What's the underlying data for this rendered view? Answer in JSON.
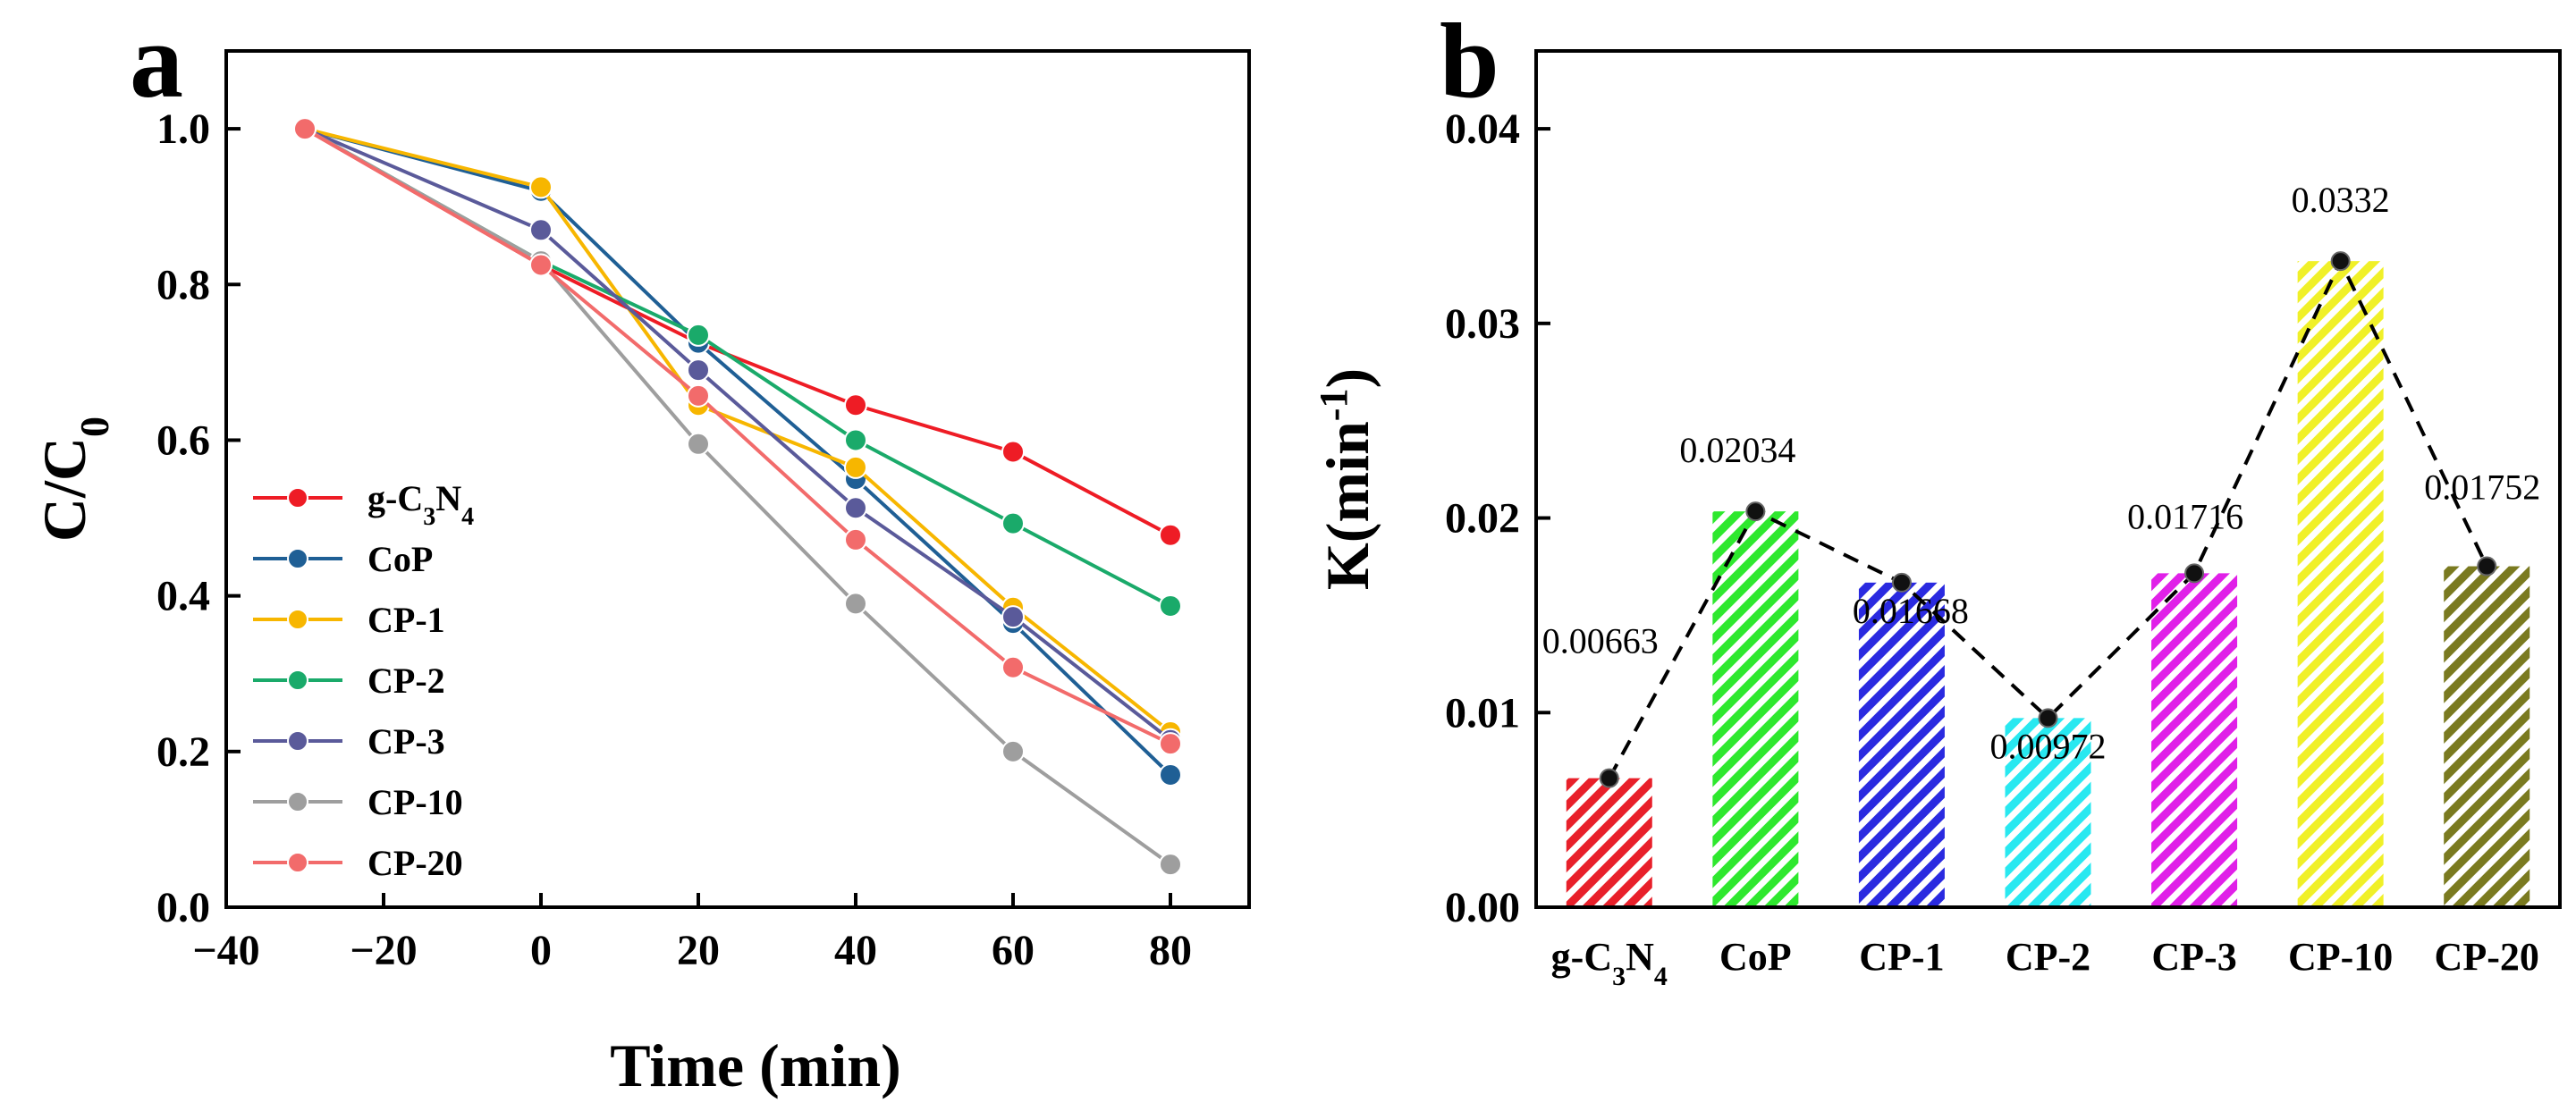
{
  "chart_data": [
    {
      "panel": "a",
      "type": "line",
      "xlabel": "Time (min)",
      "ylabel": "C/C0",
      "xlim": [
        -40,
        90
      ],
      "ylim": [
        0.0,
        1.1
      ],
      "xticks": [
        -40,
        -20,
        0,
        20,
        40,
        60,
        80
      ],
      "xtick_labels": [
        "−40",
        "−20",
        "0",
        "20",
        "40",
        "60",
        "80"
      ],
      "yticks": [
        0.0,
        0.2,
        0.4,
        0.6,
        0.8,
        1.0
      ],
      "ytick_labels": [
        "0.0",
        "0.2",
        "0.4",
        "0.6",
        "0.8",
        "1.0"
      ],
      "x": [
        -30,
        0,
        20,
        40,
        60,
        80
      ],
      "legend_position": "left",
      "series": [
        {
          "name": "g-C3N4",
          "color": "#ee1c25",
          "values": [
            1.0,
            0.825,
            0.725,
            0.645,
            0.585,
            0.478
          ]
        },
        {
          "name": "CoP",
          "color": "#1f5f95",
          "values": [
            1.0,
            0.92,
            0.725,
            0.55,
            0.365,
            0.17
          ]
        },
        {
          "name": "CP-1",
          "color": "#f7b600",
          "values": [
            1.0,
            0.925,
            0.645,
            0.565,
            0.385,
            0.225
          ]
        },
        {
          "name": "CP-2",
          "color": "#1aaa6a",
          "values": [
            1.0,
            0.83,
            0.735,
            0.6,
            0.493,
            0.387
          ]
        },
        {
          "name": "CP-3",
          "color": "#5a5a9a",
          "values": [
            1.0,
            0.87,
            0.69,
            0.513,
            0.373,
            0.215
          ]
        },
        {
          "name": "CP-10",
          "color": "#9e9e9e",
          "values": [
            1.0,
            0.83,
            0.595,
            0.39,
            0.2,
            0.055
          ]
        },
        {
          "name": "CP-20",
          "color": "#f26b6b",
          "values": [
            1.0,
            0.825,
            0.657,
            0.472,
            0.308,
            0.21
          ]
        }
      ]
    },
    {
      "panel": "b",
      "type": "bar",
      "xlabel": "",
      "ylabel": "K(min",
      "ylabel_sup": "-1",
      "ylabel_close": ")",
      "ylim": [
        0.0,
        0.044
      ],
      "yticks": [
        0.0,
        0.01,
        0.02,
        0.03,
        0.04
      ],
      "ytick_labels": [
        "0.00",
        "0.01",
        "0.02",
        "0.03",
        "0.04"
      ],
      "categories": [
        "g-C3N4",
        "CoP",
        "CP-1",
        "CP-2",
        "CP-3",
        "CP-10",
        "CP-20"
      ],
      "values": [
        0.00663,
        0.02034,
        0.01668,
        0.00972,
        0.01716,
        0.0332,
        0.01752
      ],
      "value_labels": [
        "0.00663",
        "0.02034",
        "0.01668",
        "0.00972",
        "0.01716",
        "0.0332",
        "0.01752"
      ],
      "colors": [
        "#e8202a",
        "#2ee82e",
        "#2a2ae0",
        "#28e8f0",
        "#e020e8",
        "#f0f028",
        "#7a7a20"
      ],
      "overlay": "dashed line through bar tops"
    }
  ],
  "panel_labels": {
    "a": "a",
    "b": "b"
  }
}
